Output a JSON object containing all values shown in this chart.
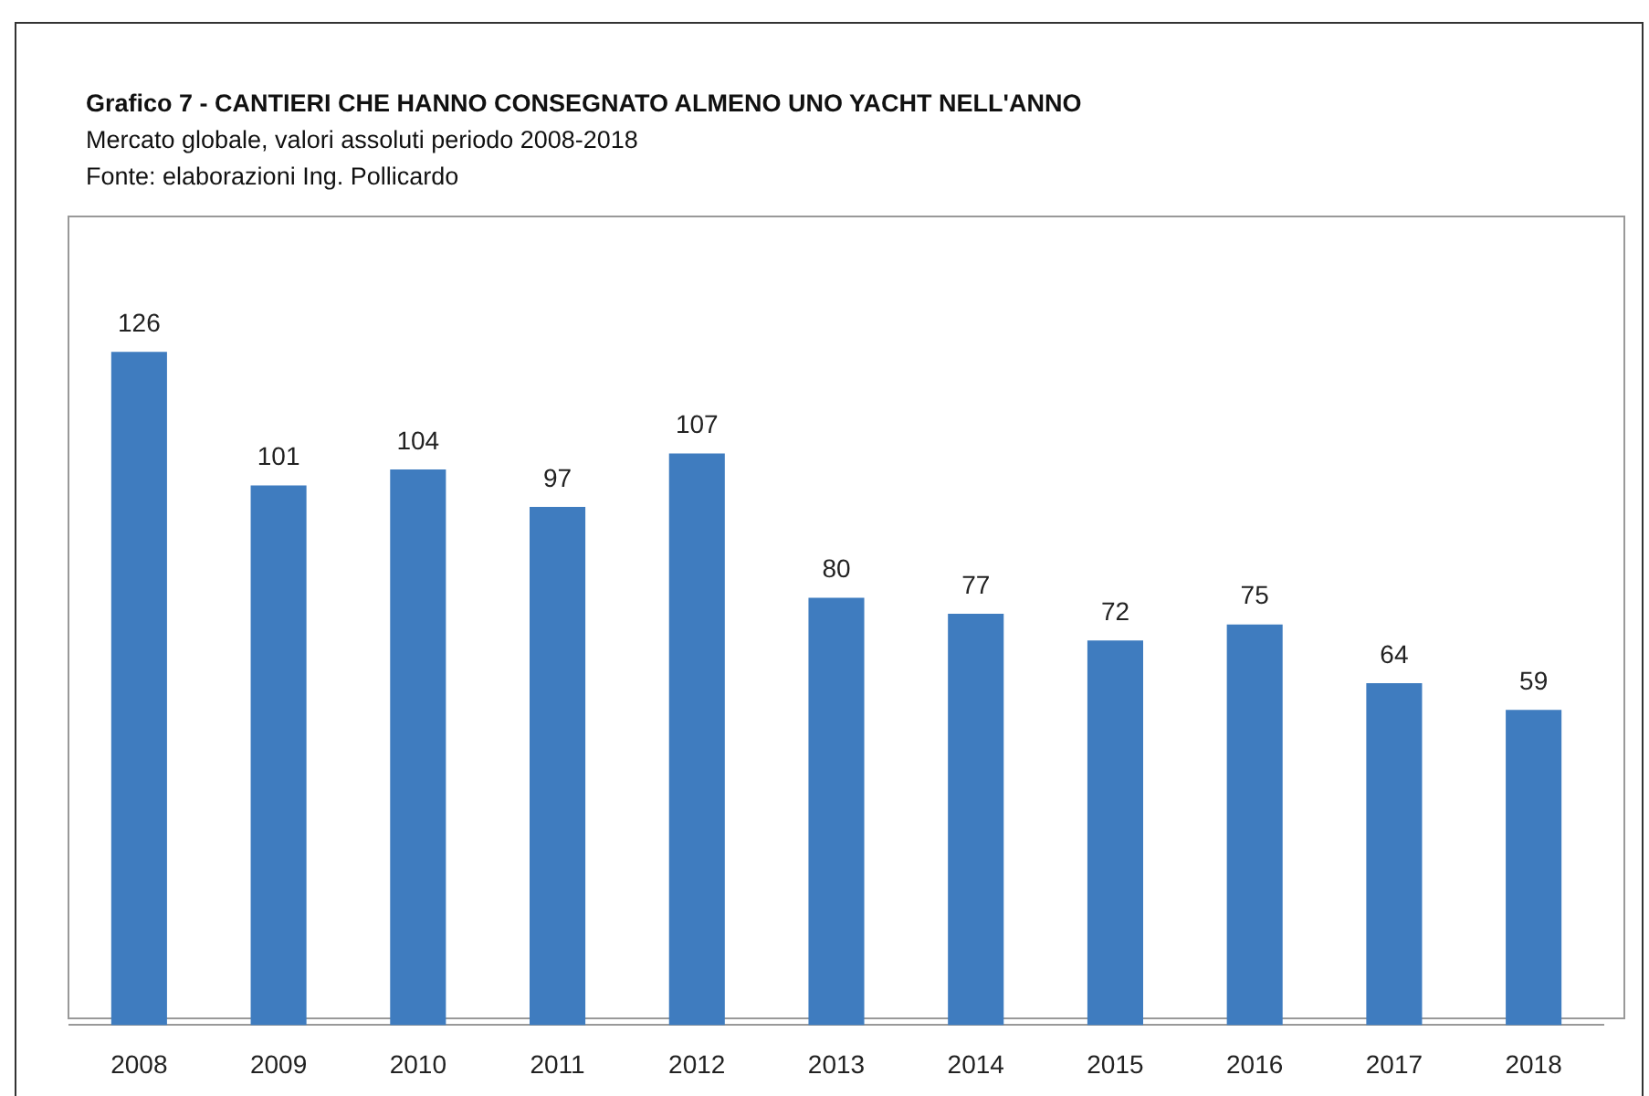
{
  "chart_data": {
    "type": "bar",
    "title": "Grafico 7 - CANTIERI CHE HANNO CONSEGNATO ALMENO UNO YACHT NELL'ANNO",
    "subtitle": "Mercato globale, valori assoluti periodo 2008-2018",
    "annotations": [
      "Fonte: elaborazioni Ing. Pollicardo"
    ],
    "categories": [
      "2008",
      "2009",
      "2010",
      "2011",
      "2012",
      "2013",
      "2014",
      "2015",
      "2016",
      "2017",
      "2018"
    ],
    "values": [
      126,
      101,
      104,
      97,
      107,
      80,
      77,
      72,
      75,
      64,
      59
    ],
    "color": "#3f7cbf",
    "data_labels": true,
    "grid": false,
    "legend": false,
    "tick_labels": "x"
  }
}
